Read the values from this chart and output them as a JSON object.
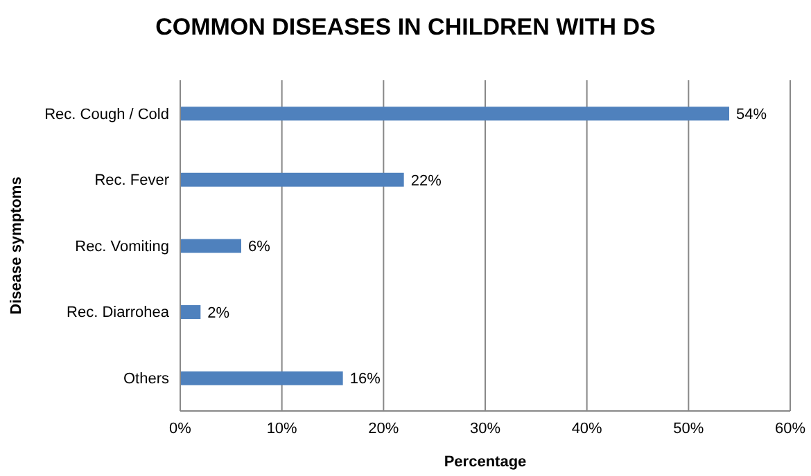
{
  "chart_data": {
    "type": "bar",
    "orientation": "horizontal",
    "title": "COMMON DISEASES IN CHILDREN WITH DS",
    "xlabel": "Percentage",
    "ylabel": "Disease symptoms",
    "categories": [
      "Rec. Cough / Cold",
      "Rec. Fever",
      "Rec. Vomiting",
      "Rec. Diarrohea",
      "Others"
    ],
    "values": [
      54,
      22,
      6,
      2,
      16
    ],
    "value_labels": [
      "54%",
      "22%",
      "6%",
      "2%",
      "16%"
    ],
    "color": "#4f81bd",
    "xlim": [
      0,
      60
    ],
    "xticks": [
      {
        "value": 0,
        "label": "0%"
      },
      {
        "value": 10,
        "label": "10%"
      },
      {
        "value": 20,
        "label": "20%"
      },
      {
        "value": 30,
        "label": "30%"
      },
      {
        "value": 40,
        "label": "40%"
      },
      {
        "value": 50,
        "label": "50%"
      },
      {
        "value": 60,
        "label": "60%"
      }
    ],
    "grid": "x",
    "legend": false
  }
}
